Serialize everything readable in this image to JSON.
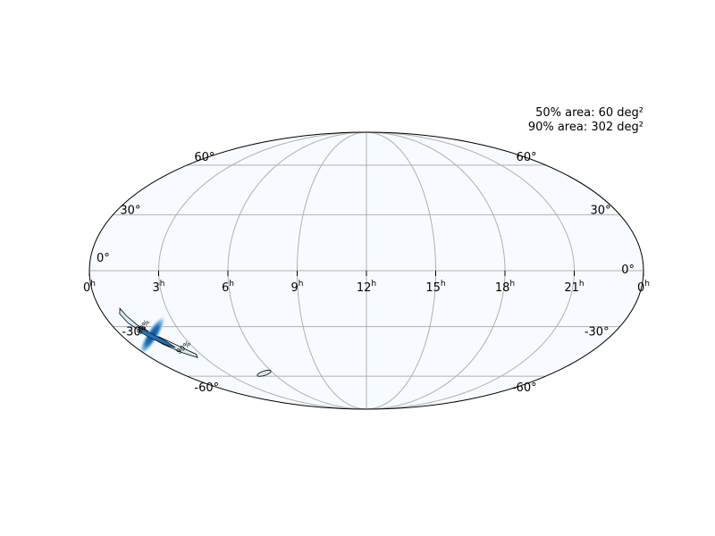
{
  "chart_data": {
    "type": "heatmap",
    "projection": "mollweide",
    "title": "",
    "xlabel": "",
    "ylabel": "",
    "ra_tick_labels": [
      "0",
      "21",
      "18",
      "15",
      "12",
      "9",
      "6",
      "3",
      "0"
    ],
    "ra_tick_values_hours": [
      24,
      21,
      18,
      15,
      12,
      9,
      6,
      3,
      0
    ],
    "ra_tick_unit": "h",
    "dec_tick_labels_left": [
      "60°",
      "30°",
      "0°",
      "-30°",
      "-60°"
    ],
    "dec_tick_labels_right": [
      "60°",
      "30°",
      "0°",
      "-30°",
      "-60°"
    ],
    "dec_tick_values_deg": [
      60,
      30,
      0,
      -30,
      -60
    ],
    "grid": true,
    "colormap": "Blues",
    "contour_labels": [
      "50%",
      "90%"
    ],
    "contour_levels_percent": [
      50,
      90
    ],
    "annotations": {
      "area_50": "50% area: 60 deg²",
      "area_90": "90% area: 302 deg²"
    },
    "localization": {
      "main_region_center_ra_hours": 1.5,
      "main_region_center_dec_deg": -35,
      "secondary_region_center_ra_hours": 5.4,
      "secondary_region_center_dec_deg": -58
    },
    "colors": {
      "background": "#f7fbff",
      "grid": "#b0b0b0",
      "frame": "#000000",
      "high_probability": "#2171b5",
      "mid_probability": "#9ecae1",
      "contour": "#000000"
    }
  }
}
